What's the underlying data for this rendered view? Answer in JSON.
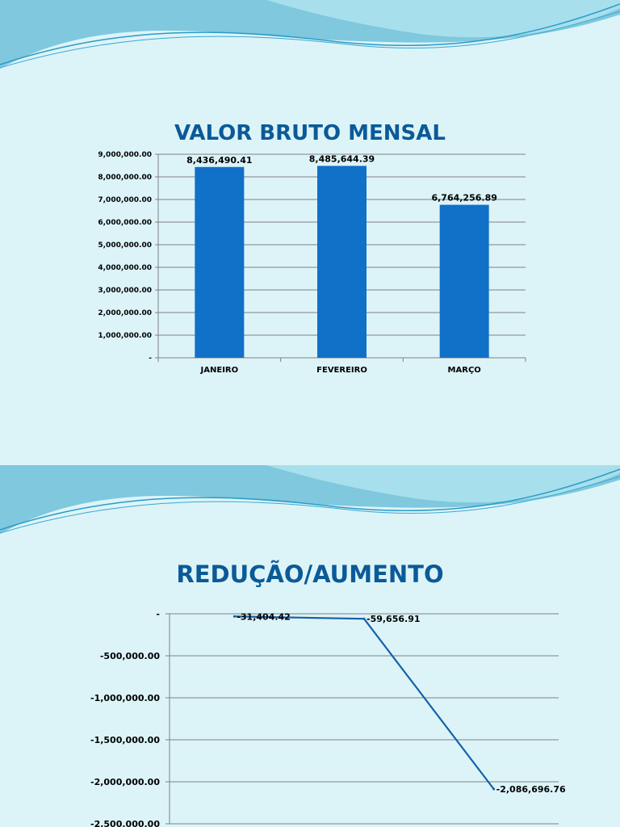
{
  "slide1": {
    "title": "VALOR BRUTO MENSAL"
  },
  "slide2": {
    "title": "REDUÇÃO/AUMENTO"
  },
  "colors": {
    "background": "#dcf4f8",
    "bar": "#1170c8",
    "line": "#1560a8",
    "title": "#0b5a98",
    "wave_light": "#9ed8e8",
    "wave_dark": "#5bbfd6"
  },
  "chart_data": [
    {
      "type": "bar",
      "title": "VALOR BRUTO MENSAL",
      "categories": [
        "JANEIRO",
        "FEVEREIRO",
        "MARÇO"
      ],
      "values": [
        8436490.41,
        8485644.39,
        6764256.89
      ],
      "value_labels": [
        "8,436,490.41",
        "8,485,644.39",
        "6,764,256.89"
      ],
      "ylim": [
        0,
        9000000
      ],
      "yticks": [
        0,
        1000000,
        2000000,
        3000000,
        4000000,
        5000000,
        6000000,
        7000000,
        8000000,
        9000000
      ],
      "ytick_labels": [
        "-",
        "1,000,000.00",
        "2,000,000.00",
        "3,000,000.00",
        "4,000,000.00",
        "5,000,000.00",
        "6,000,000.00",
        "7,000,000.00",
        "8,000,000.00",
        "9,000,000.00"
      ],
      "grid": true,
      "legend": "none"
    },
    {
      "type": "line",
      "title": "REDUÇÃO/AUMENTO",
      "values": [
        -31404.42,
        -59656.91,
        -2086696.76
      ],
      "value_labels": [
        "-31,404.42",
        "-59,656.91",
        "-2,086,696.76"
      ],
      "ylim": [
        -2500000,
        0
      ],
      "yticks": [
        0,
        -500000,
        -1000000,
        -1500000,
        -2000000,
        -2500000
      ],
      "ytick_labels": [
        "-",
        "-500,000.00",
        "-1,000,000.00",
        "-1,500,000.00",
        "-2,000,000.00",
        "-2,500,000.00"
      ],
      "grid": true,
      "legend": "none"
    }
  ]
}
